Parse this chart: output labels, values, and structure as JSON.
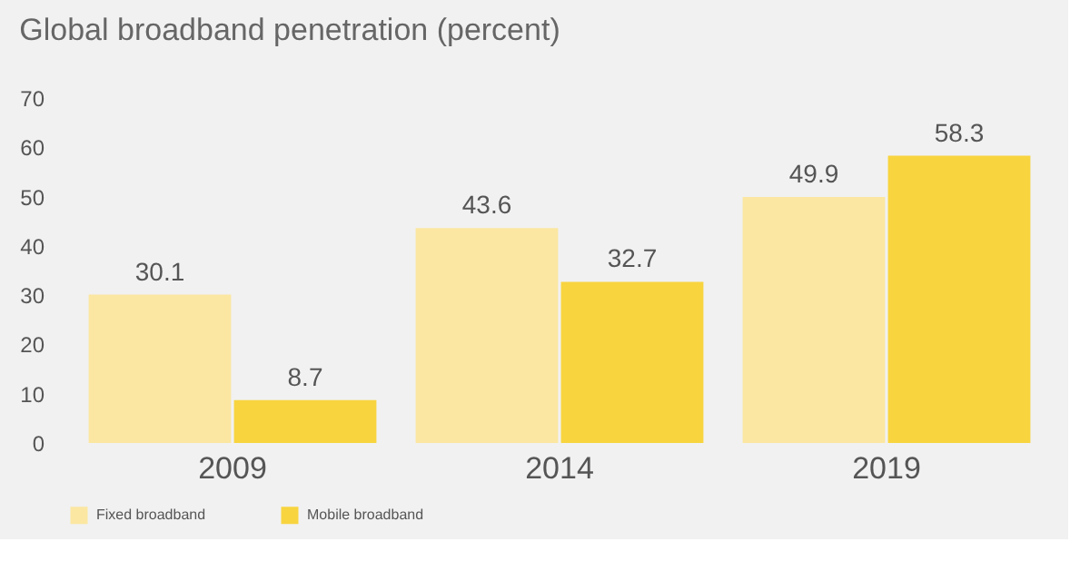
{
  "chart_data": {
    "type": "bar",
    "title": "Global broadband penetration (percent)",
    "categories": [
      "2009",
      "2014",
      "2019"
    ],
    "series": [
      {
        "name": "Fixed broadband",
        "color": "#fbe7a1",
        "values": [
          30.1,
          43.6,
          49.9
        ]
      },
      {
        "name": "Mobile broadband",
        "color": "#f8d43f",
        "values": [
          8.7,
          32.7,
          58.3
        ]
      }
    ],
    "ylim": [
      0,
      70
    ],
    "yticks": [
      0,
      10,
      20,
      30,
      40,
      50,
      60,
      70
    ],
    "grid": false,
    "legend": "bottom left",
    "data_labels": true
  }
}
